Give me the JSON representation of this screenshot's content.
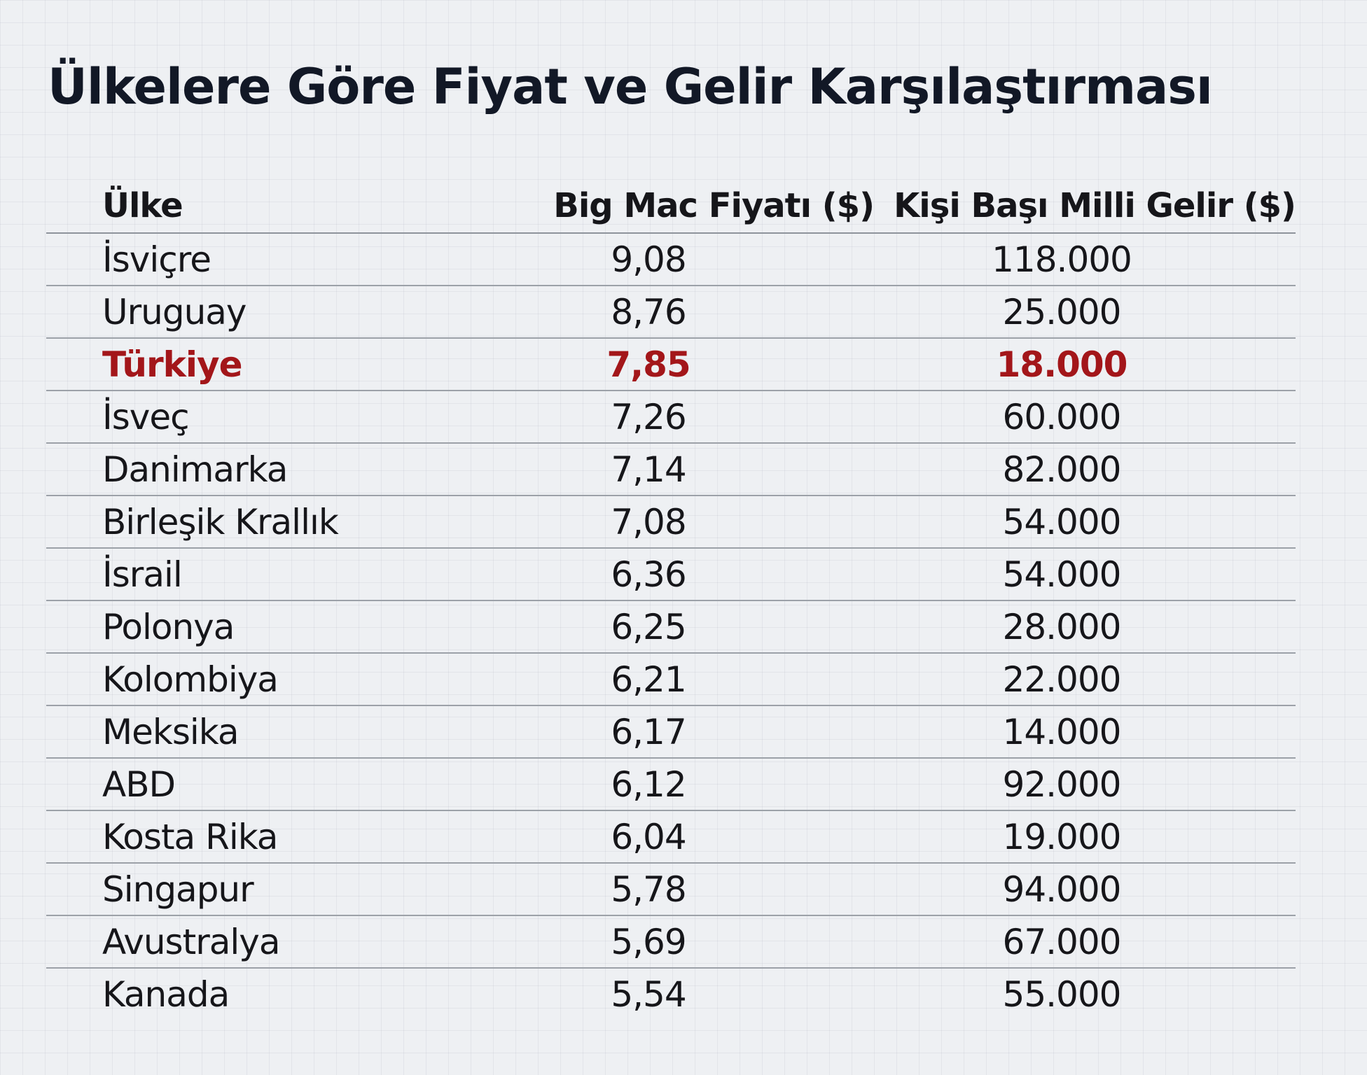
{
  "title": "Ülkelere Göre Fiyat ve Gelir Karşılaştırması",
  "colors": {
    "highlight": "#a3161a",
    "text": "#16161a",
    "background": "#eef0f3"
  },
  "chart_data": {
    "type": "table",
    "title": "Ülkelere Göre Fiyat ve Gelir Karşılaştırması",
    "columns": [
      "Ülke",
      "Big Mac Fiyatı ($)",
      "Kişi Başı Milli Gelir ($)"
    ],
    "highlighted_row": "Türkiye",
    "rows": [
      {
        "country": "İsviçre",
        "price": "9,08",
        "income": "118.000"
      },
      {
        "country": "Uruguay",
        "price": "8,76",
        "income": "25.000"
      },
      {
        "country": "Türkiye",
        "price": "7,85",
        "income": "18.000"
      },
      {
        "country": "İsveç",
        "price": "7,26",
        "income": "60.000"
      },
      {
        "country": "Danimarka",
        "price": "7,14",
        "income": "82.000"
      },
      {
        "country": "Birleşik Krallık",
        "price": "7,08",
        "income": "54.000"
      },
      {
        "country": "İsrail",
        "price": "6,36",
        "income": "54.000"
      },
      {
        "country": "Polonya",
        "price": "6,25",
        "income": "28.000"
      },
      {
        "country": "Kolombiya",
        "price": "6,21",
        "income": "22.000"
      },
      {
        "country": "Meksika",
        "price": "6,17",
        "income": "14.000"
      },
      {
        "country": "ABD",
        "price": "6,12",
        "income": "92.000"
      },
      {
        "country": "Kosta Rika",
        "price": "6,04",
        "income": "19.000"
      },
      {
        "country": "Singapur",
        "price": "5,78",
        "income": "94.000"
      },
      {
        "country": "Avustralya",
        "price": "5,69",
        "income": "67.000"
      },
      {
        "country": "Kanada",
        "price": "5,54",
        "income": "55.000"
      }
    ]
  }
}
